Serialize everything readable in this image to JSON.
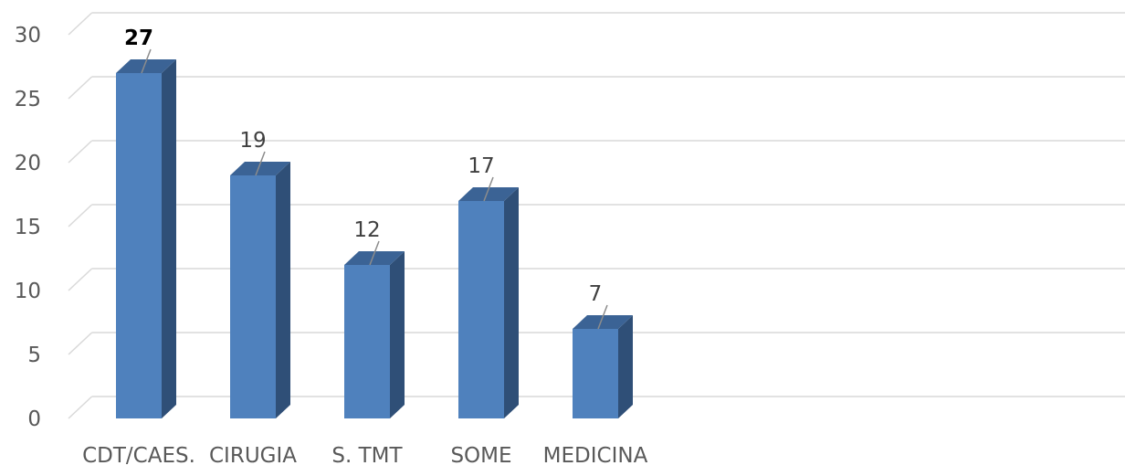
{
  "chart_data": {
    "type": "bar",
    "categories": [
      "CDT/CAES.",
      "CIRUGIA",
      "S. TMT",
      "SOME",
      "MEDICINA"
    ],
    "values": [
      27,
      19,
      12,
      17,
      7
    ],
    "ylim": [
      0,
      30
    ],
    "yticks": [
      0,
      5,
      10,
      15,
      20,
      25,
      30
    ],
    "grid": true,
    "bold_labels": [
      true,
      false,
      false,
      false,
      false
    ],
    "colors": {
      "bar_front": "#4f81bd",
      "bar_side": "#2f4f77",
      "bar_top": "#3b6395",
      "grid": "#d9d9d9",
      "leader": "#8c8c8c"
    }
  }
}
